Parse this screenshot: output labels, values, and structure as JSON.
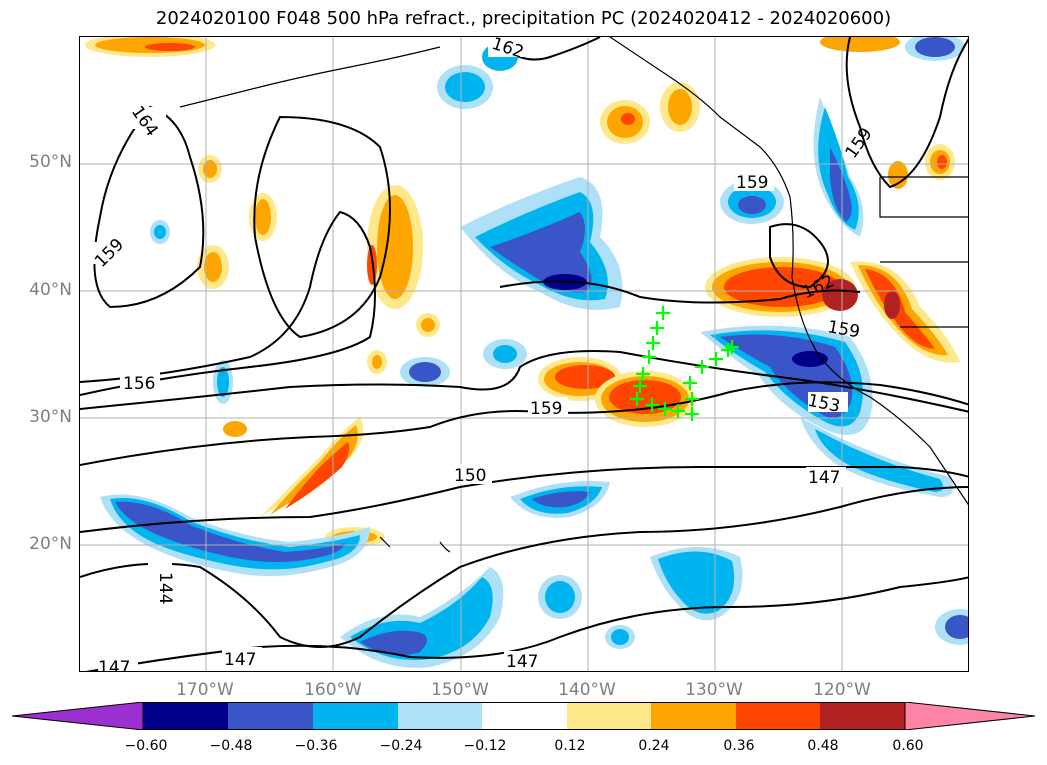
{
  "title": "2024020100 F048 500 hPa refract., precipitation PC (2024020412 - 2024020600)",
  "map": {
    "lat_labels": [
      "50°N",
      "40°N",
      "30°N",
      "20°N"
    ],
    "lon_labels": [
      "170°W",
      "160°W",
      "150°W",
      "140°W",
      "130°W",
      "120°W"
    ],
    "contour_labels": [
      "162",
      "164",
      "159",
      "156",
      "159",
      "150",
      "147",
      "144",
      "147",
      "147",
      "153",
      "147",
      "162",
      "159",
      "159",
      "159"
    ],
    "marker_color": "#00ff00",
    "colors": {
      "neg_very_high": "#9b30d0",
      "neg_060": "#00008b",
      "neg_048": "#3a55c8",
      "neg_036": "#00b4f0",
      "neg_024": "#aee0f8",
      "neutral": "#ffffff",
      "pos_012": "#ffe88a",
      "pos_024": "#ffa500",
      "pos_036": "#ff4500",
      "pos_048": "#b22222",
      "pos_060": "#ff85a8"
    }
  },
  "colorbar": {
    "ticks": [
      "−0.60",
      "−0.48",
      "−0.36",
      "−0.24",
      "−0.12",
      "0.12",
      "0.24",
      "0.36",
      "0.48",
      "0.60"
    ]
  }
}
